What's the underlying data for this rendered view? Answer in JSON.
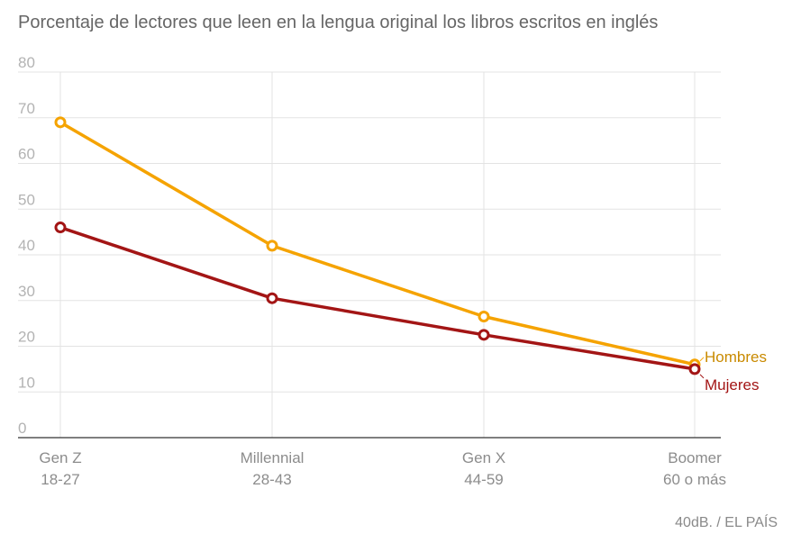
{
  "title": "Porcentaje de lectores que leen en la lengua original los libros escritos en inglés",
  "source": "40dB. / EL PAÍS",
  "chart_data": {
    "type": "line",
    "categories": [
      {
        "name": "Gen Z",
        "range": "18-27"
      },
      {
        "name": "Millennial",
        "range": "28-43"
      },
      {
        "name": "Gen X",
        "range": "44-59"
      },
      {
        "name": "Boomer",
        "range": "60 o más"
      }
    ],
    "ylim": [
      0,
      80
    ],
    "yticks": [
      0,
      10,
      20,
      30,
      40,
      50,
      60,
      70,
      80
    ],
    "grid": true,
    "series": [
      {
        "name": "Hombres",
        "color": "#f5a300",
        "label_color": "#c98a00",
        "values": [
          69,
          42,
          26.5,
          16
        ]
      },
      {
        "name": "Mujeres",
        "color": "#a31515",
        "label_color": "#a31515",
        "values": [
          46,
          30.5,
          22.5,
          15
        ]
      }
    ]
  }
}
